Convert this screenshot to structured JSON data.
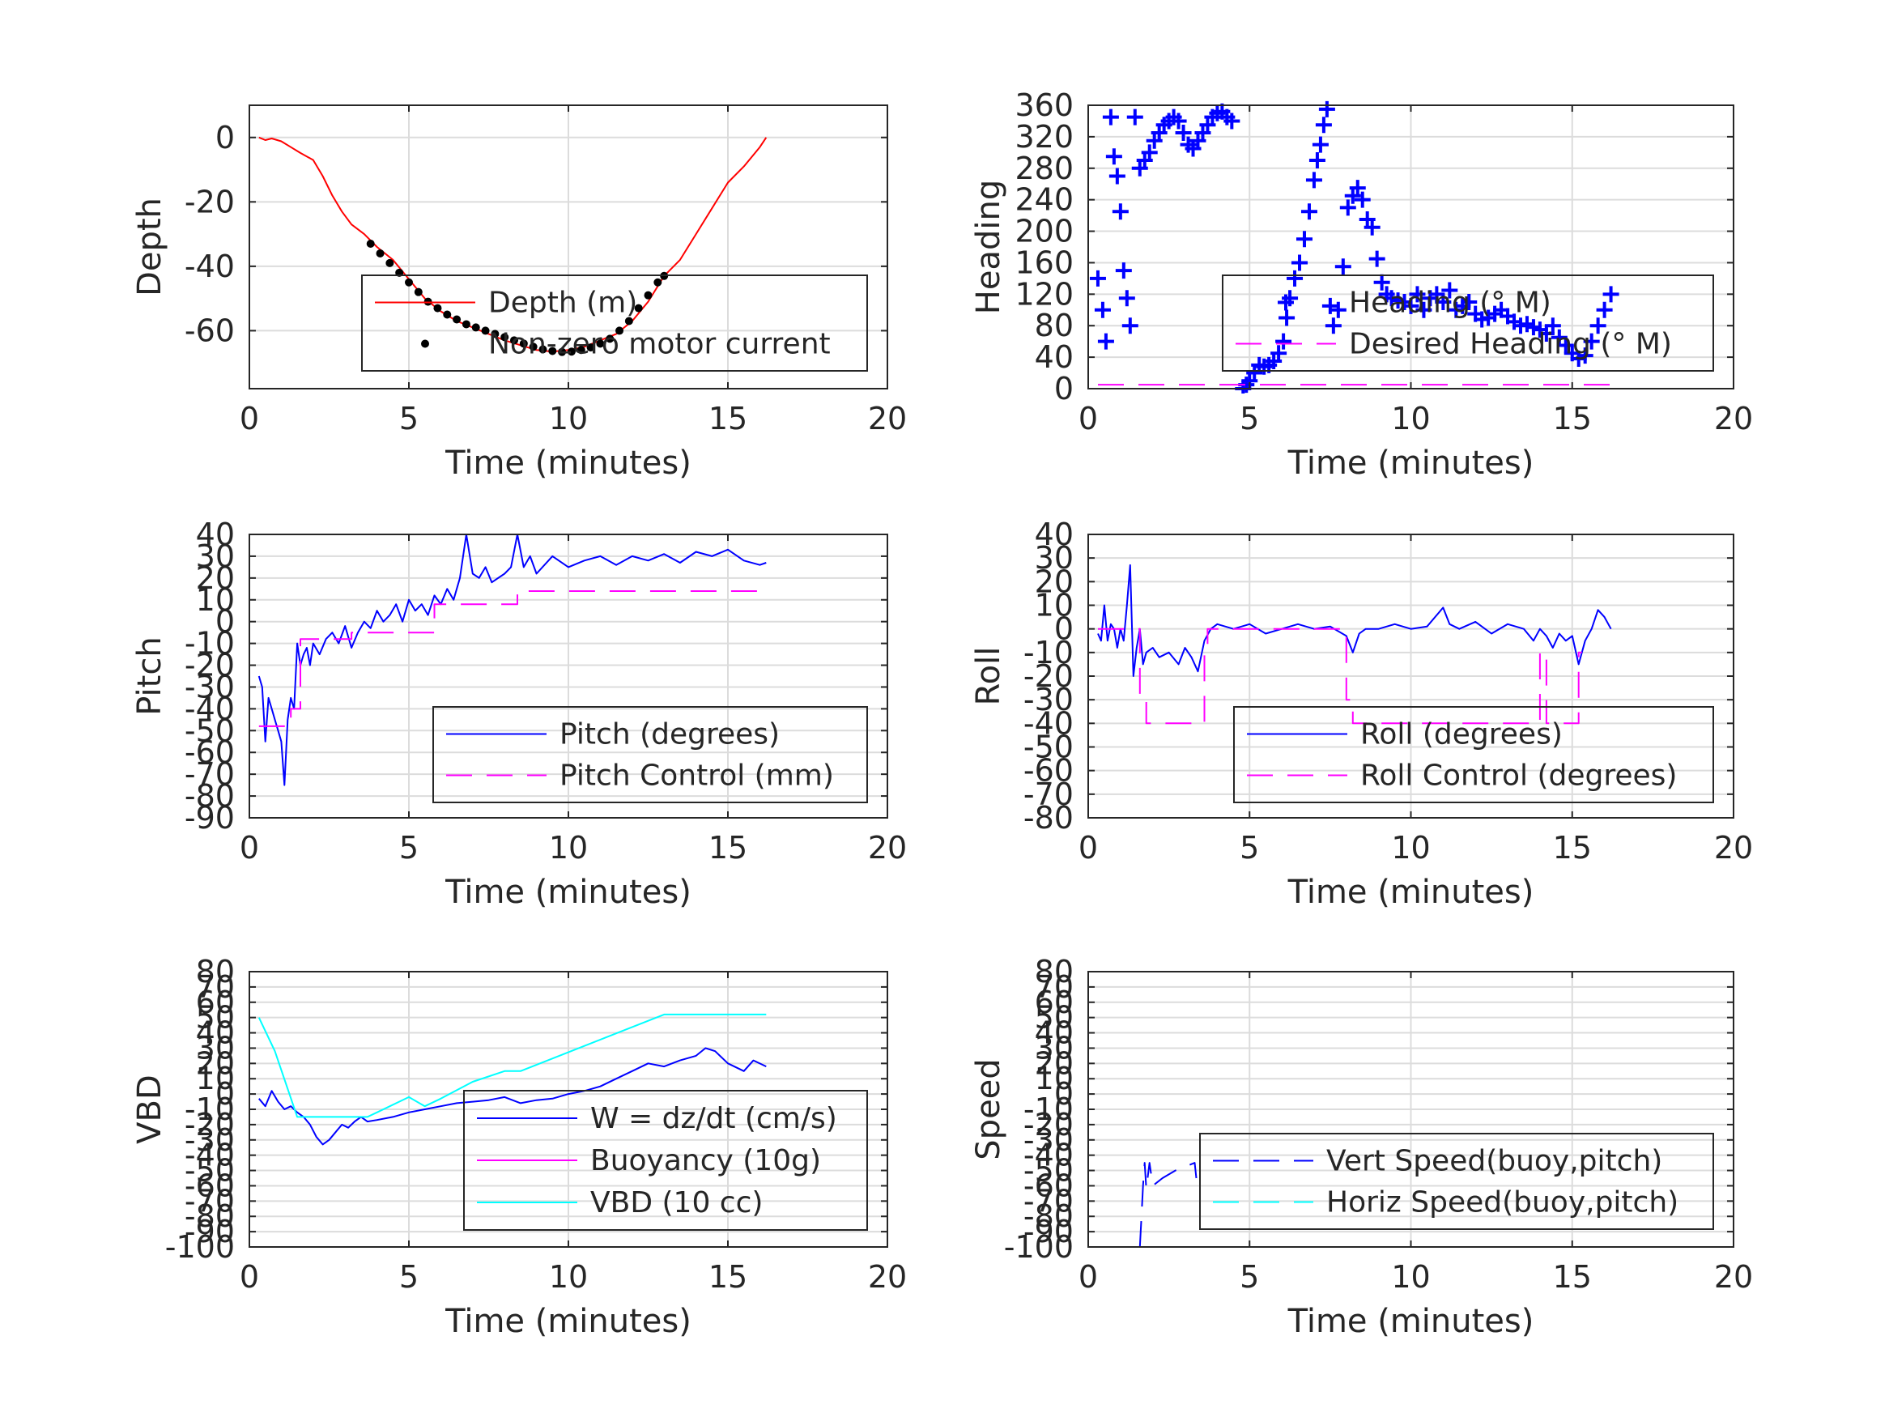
{
  "chart_data": [
    {
      "type": "line",
      "ylabel": "Depth",
      "xlabel": "Time (minutes)",
      "xlim": [
        0,
        20
      ],
      "ylim": [
        -78,
        10
      ],
      "xticks": [
        0,
        5,
        10,
        15,
        20
      ],
      "yticks": [
        0,
        -20,
        -40,
        -60
      ],
      "grid": true,
      "legend_position": "lower-right",
      "series": [
        {
          "name": "Depth (m)",
          "color": "#ff0000",
          "style": "solid",
          "x": [
            0.3,
            0.5,
            0.7,
            1.0,
            1.3,
            1.6,
            2.0,
            2.3,
            2.6,
            2.9,
            3.2,
            3.6,
            4.0,
            4.5,
            5.0,
            5.5,
            6.0,
            6.5,
            7.0,
            7.5,
            8.0,
            8.5,
            9.0,
            9.5,
            10.0,
            10.5,
            11.0,
            11.5,
            12.0,
            12.5,
            13.0,
            13.5,
            14.0,
            14.5,
            15.0,
            15.5,
            16.0,
            16.2
          ],
          "y": [
            0,
            -0.8,
            -0.3,
            -1.2,
            -3,
            -4.8,
            -7,
            -12,
            -18,
            -23,
            -27,
            -30,
            -34,
            -38,
            -44,
            -50,
            -54,
            -57,
            -59,
            -61,
            -63,
            -64.5,
            -66,
            -66.5,
            -66,
            -65,
            -63,
            -61,
            -57,
            -51,
            -43,
            -38,
            -30,
            -22,
            -14,
            -9,
            -3,
            0
          ]
        },
        {
          "name": "Non-zero motor current",
          "color": "#000000",
          "style": "dots",
          "x": [
            3.8,
            4.1,
            4.4,
            4.7,
            5.0,
            5.3,
            5.6,
            5.9,
            6.2,
            6.5,
            6.8,
            7.1,
            7.4,
            7.7,
            8.0,
            8.3,
            8.6,
            8.9,
            9.2,
            9.5,
            9.8,
            10.1,
            10.4,
            10.7,
            11.0,
            11.3,
            11.6,
            11.9,
            12.2,
            12.5,
            12.8,
            13.0
          ],
          "y": [
            -33,
            -36,
            -39,
            -42,
            -45,
            -48,
            -51,
            -53,
            -55,
            -56.5,
            -58,
            -59,
            -60,
            -61,
            -62,
            -63,
            -64,
            -65,
            -65.8,
            -66.3,
            -66.6,
            -66.5,
            -66,
            -65.2,
            -64,
            -62.5,
            -60,
            -57,
            -53,
            -49,
            -45,
            -43
          ]
        }
      ]
    },
    {
      "type": "scatter",
      "ylabel": "Heading",
      "xlabel": "Time (minutes)",
      "xlim": [
        0,
        20
      ],
      "ylim": [
        0,
        360
      ],
      "xticks": [
        0,
        5,
        10,
        15,
        20
      ],
      "yticks": [
        0,
        40,
        80,
        120,
        160,
        200,
        240,
        280,
        320,
        360
      ],
      "grid": true,
      "legend_position": "lower-right",
      "series": [
        {
          "name": "Heading (° M)",
          "color": "#0000ff",
          "style": "plus",
          "x": [
            0.3,
            0.45,
            0.55,
            0.7,
            0.8,
            0.9,
            1.0,
            1.1,
            1.2,
            1.3,
            1.45,
            1.6,
            1.75,
            1.9,
            2.05,
            2.2,
            2.35,
            2.5,
            2.65,
            2.8,
            2.95,
            3.1,
            3.25,
            3.4,
            3.55,
            3.7,
            3.85,
            4.0,
            4.15,
            4.3,
            4.45,
            4.8,
            4.9,
            5.0,
            5.15,
            5.3,
            5.45,
            5.6,
            5.75,
            5.9,
            6.05,
            6.15,
            6.25,
            6.4,
            6.55,
            6.7,
            6.85,
            7.0,
            7.1,
            7.2,
            7.3,
            7.4,
            7.5,
            7.6,
            7.75,
            7.9,
            8.05,
            8.2,
            8.35,
            8.5,
            8.65,
            8.8,
            8.95,
            9.1,
            9.25,
            9.4,
            9.6,
            9.8,
            10.0,
            10.2,
            10.4,
            10.6,
            10.8,
            11.0,
            11.2,
            11.4,
            11.6,
            11.8,
            12.0,
            12.2,
            12.4,
            12.6,
            12.8,
            13.0,
            13.2,
            13.4,
            13.6,
            13.8,
            14.0,
            14.2,
            14.4,
            14.6,
            14.8,
            15.0,
            15.2,
            15.4,
            15.6,
            15.8,
            16.0,
            16.2
          ],
          "y": [
            140,
            100,
            60,
            345,
            295,
            270,
            225,
            150,
            115,
            80,
            345,
            280,
            290,
            300,
            315,
            325,
            335,
            340,
            345,
            340,
            325,
            310,
            305,
            315,
            325,
            335,
            345,
            350,
            352,
            345,
            340,
            0,
            5,
            10,
            20,
            30,
            28,
            30,
            35,
            45,
            60,
            90,
            115,
            140,
            160,
            190,
            225,
            265,
            290,
            310,
            335,
            355,
            105,
            80,
            100,
            155,
            230,
            245,
            255,
            240,
            215,
            205,
            165,
            135,
            120,
            115,
            112,
            110,
            105,
            120,
            100,
            115,
            120,
            110,
            125,
            100,
            105,
            110,
            95,
            88,
            90,
            95,
            100,
            92,
            85,
            80,
            82,
            78,
            75,
            70,
            80,
            65,
            55,
            45,
            38,
            42,
            60,
            80,
            100,
            120
          ]
        },
        {
          "name": "Desired Heading (° M)",
          "color": "#ff00ff",
          "style": "dashed",
          "x": [
            0.3,
            16.2
          ],
          "y": [
            5,
            5
          ]
        }
      ]
    },
    {
      "type": "line",
      "ylabel": "Pitch",
      "xlabel": "Time (minutes)",
      "xlim": [
        0,
        20
      ],
      "ylim": [
        -90,
        40
      ],
      "xticks": [
        0,
        5,
        10,
        15,
        20
      ],
      "yticks": [
        40,
        30,
        20,
        10,
        0,
        -10,
        -20,
        -30,
        -40,
        -50,
        -60,
        -70,
        -80,
        -90
      ],
      "grid": true,
      "legend_position": "lower-right",
      "series": [
        {
          "name": "Pitch (degrees)",
          "color": "#0000ff",
          "style": "solid",
          "x": [
            0.3,
            0.4,
            0.5,
            0.6,
            0.7,
            0.8,
            0.9,
            1.0,
            1.1,
            1.2,
            1.3,
            1.4,
            1.5,
            1.6,
            1.7,
            1.8,
            1.9,
            2.0,
            2.2,
            2.4,
            2.6,
            2.8,
            3.0,
            3.2,
            3.4,
            3.6,
            3.8,
            4.0,
            4.2,
            4.4,
            4.6,
            4.8,
            5.0,
            5.2,
            5.4,
            5.6,
            5.8,
            6.0,
            6.2,
            6.4,
            6.6,
            6.8,
            7.0,
            7.2,
            7.4,
            7.6,
            7.8,
            8.0,
            8.2,
            8.4,
            8.6,
            8.8,
            9.0,
            9.5,
            10.0,
            10.5,
            11.0,
            11.5,
            12.0,
            12.5,
            13.0,
            13.5,
            14.0,
            14.5,
            15.0,
            15.5,
            16.0,
            16.2
          ],
          "y": [
            -25,
            -30,
            -55,
            -35,
            -40,
            -45,
            -50,
            -55,
            -75,
            -45,
            -35,
            -40,
            -10,
            -20,
            -15,
            -12,
            -20,
            -10,
            -15,
            -8,
            -5,
            -10,
            -2,
            -12,
            -5,
            0,
            -3,
            5,
            0,
            3,
            8,
            0,
            10,
            5,
            8,
            3,
            12,
            8,
            15,
            10,
            20,
            40,
            22,
            20,
            25,
            18,
            20,
            22,
            25,
            40,
            25,
            30,
            22,
            30,
            25,
            28,
            30,
            26,
            30,
            28,
            31,
            27,
            32,
            30,
            33,
            28,
            26,
            27
          ]
        },
        {
          "name": "Pitch Control (mm)",
          "color": "#ff00ff",
          "style": "dashed",
          "x": [
            0.3,
            1.3,
            1.3,
            1.6,
            1.6,
            3.2,
            3.2,
            5.8,
            5.8,
            8.4,
            8.4,
            16.2
          ],
          "y": [
            -48,
            -48,
            -40,
            -40,
            -8,
            -8,
            -5,
            -5,
            8,
            8,
            14,
            14
          ]
        }
      ]
    },
    {
      "type": "line",
      "ylabel": "Roll",
      "xlabel": "Time (minutes)",
      "xlim": [
        0,
        20
      ],
      "ylim": [
        -80,
        40
      ],
      "xticks": [
        0,
        5,
        10,
        15,
        20
      ],
      "yticks": [
        40,
        30,
        20,
        10,
        0,
        -10,
        -20,
        -30,
        -40,
        -50,
        -60,
        -70,
        -80
      ],
      "grid": true,
      "legend_position": "lower-right",
      "series": [
        {
          "name": "Roll (degrees)",
          "color": "#0000ff",
          "style": "solid",
          "x": [
            0.3,
            0.4,
            0.5,
            0.6,
            0.7,
            0.8,
            0.9,
            1.0,
            1.1,
            1.2,
            1.3,
            1.4,
            1.5,
            1.6,
            1.7,
            1.8,
            2.0,
            2.2,
            2.5,
            2.8,
            3.0,
            3.2,
            3.4,
            3.6,
            3.8,
            4.0,
            4.5,
            5.0,
            5.5,
            6.0,
            6.5,
            7.0,
            7.5,
            8.0,
            8.2,
            8.4,
            8.6,
            9.0,
            9.5,
            10.0,
            10.5,
            11.0,
            11.2,
            11.5,
            12.0,
            12.5,
            13.0,
            13.5,
            13.8,
            14.0,
            14.2,
            14.4,
            14.6,
            14.8,
            15.0,
            15.2,
            15.4,
            15.6,
            15.8,
            16.0,
            16.2
          ],
          "y": [
            -2,
            -5,
            10,
            -5,
            2,
            0,
            -8,
            0,
            -5,
            10,
            27,
            -20,
            -8,
            0,
            -15,
            -10,
            -8,
            -12,
            -10,
            -15,
            -8,
            -12,
            -18,
            -5,
            0,
            2,
            0,
            2,
            -2,
            0,
            2,
            0,
            1,
            -3,
            -10,
            -2,
            0,
            0,
            2,
            0,
            1,
            9,
            2,
            0,
            3,
            -2,
            2,
            0,
            -5,
            0,
            -3,
            -8,
            -2,
            -5,
            -3,
            -15,
            -5,
            0,
            8,
            5,
            0
          ]
        },
        {
          "name": "Roll Control (degrees)",
          "color": "#ff00ff",
          "style": "dashed",
          "x": [
            0.3,
            1.6,
            1.6,
            1.8,
            1.8,
            3.6,
            3.6,
            3.7,
            3.7,
            8.0,
            8.0,
            8.2,
            8.2,
            14.0,
            14.0,
            14.2,
            14.2,
            15.2,
            15.2,
            15.3
          ],
          "y": [
            0,
            0,
            -30,
            -30,
            -40,
            -40,
            -10,
            -10,
            0,
            0,
            -30,
            -30,
            -40,
            -40,
            -10,
            -10,
            -40,
            -40,
            -10,
            -10
          ]
        }
      ]
    },
    {
      "type": "line",
      "ylabel": "VBD",
      "xlabel": "Time (minutes)",
      "xlim": [
        0,
        20
      ],
      "ylim": [
        -100,
        80
      ],
      "xticks": [
        0,
        5,
        10,
        15,
        20
      ],
      "yticks": [
        80,
        70,
        60,
        50,
        40,
        30,
        20,
        10,
        0,
        -10,
        -20,
        -30,
        -40,
        -50,
        -60,
        -70,
        -80,
        -90,
        -100
      ],
      "grid": true,
      "legend_position": "lower-right",
      "series": [
        {
          "name": "W = dz/dt (cm/s)",
          "color": "#0000ff",
          "style": "solid",
          "x": [
            0.3,
            0.5,
            0.7,
            0.9,
            1.1,
            1.3,
            1.5,
            1.7,
            1.9,
            2.1,
            2.3,
            2.5,
            2.7,
            2.9,
            3.1,
            3.3,
            3.5,
            3.7,
            4.0,
            4.5,
            5.0,
            5.5,
            6.0,
            6.5,
            7.0,
            7.5,
            8.0,
            8.5,
            9.0,
            9.5,
            10.0,
            10.5,
            11.0,
            11.5,
            12.0,
            12.5,
            13.0,
            13.5,
            14.0,
            14.3,
            14.6,
            15.0,
            15.5,
            15.8,
            16.2
          ],
          "y": [
            -3,
            -8,
            2,
            -5,
            -10,
            -8,
            -12,
            -15,
            -20,
            -28,
            -33,
            -30,
            -25,
            -20,
            -22,
            -18,
            -15,
            -18,
            -17,
            -15,
            -12,
            -10,
            -8,
            -6,
            -5,
            -4,
            -2,
            -6,
            -4,
            -3,
            0,
            2,
            5,
            10,
            15,
            20,
            18,
            22,
            25,
            30,
            28,
            20,
            15,
            22,
            18
          ]
        },
        {
          "name": "Buoyancy (10g)",
          "color": "#ff00ff",
          "style": "solid",
          "x": [],
          "y": []
        },
        {
          "name": "VBD (10 cc)",
          "color": "#00ffff",
          "style": "solid",
          "x": [
            0.3,
            0.8,
            1.5,
            2.0,
            3.0,
            3.7,
            4.0,
            5.0,
            5.5,
            6.0,
            7.0,
            8.0,
            8.5,
            13.0,
            16.2
          ],
          "y": [
            50,
            28,
            -15,
            -15,
            -15,
            -15,
            -12,
            -2,
            -8,
            -3,
            8,
            15,
            15,
            52,
            52
          ]
        }
      ]
    },
    {
      "type": "line",
      "ylabel": "Speed",
      "xlabel": "Time (minutes)",
      "xlim": [
        0,
        20
      ],
      "ylim": [
        -100,
        80
      ],
      "xticks": [
        0,
        5,
        10,
        15,
        20
      ],
      "yticks": [
        80,
        70,
        60,
        50,
        40,
        30,
        20,
        10,
        0,
        -10,
        -20,
        -30,
        -40,
        -50,
        -60,
        -70,
        -80,
        -90,
        -100
      ],
      "grid": true,
      "legend_position": "lower-right",
      "series": [
        {
          "name": "Vert Speed(buoy,pitch)",
          "color": "#0000ff",
          "style": "dashed",
          "x": [
            1.6,
            1.65,
            1.7,
            1.75,
            1.8,
            1.9,
            2.0,
            2.3,
            2.7,
            3.3,
            3.35
          ],
          "y": [
            -100,
            -80,
            -60,
            -45,
            -62,
            -45,
            -60,
            -55,
            -50,
            -45,
            -55
          ]
        },
        {
          "name": "Horiz Speed(buoy,pitch)",
          "color": "#00ffff",
          "style": "dashed",
          "x": [],
          "y": []
        }
      ]
    }
  ]
}
